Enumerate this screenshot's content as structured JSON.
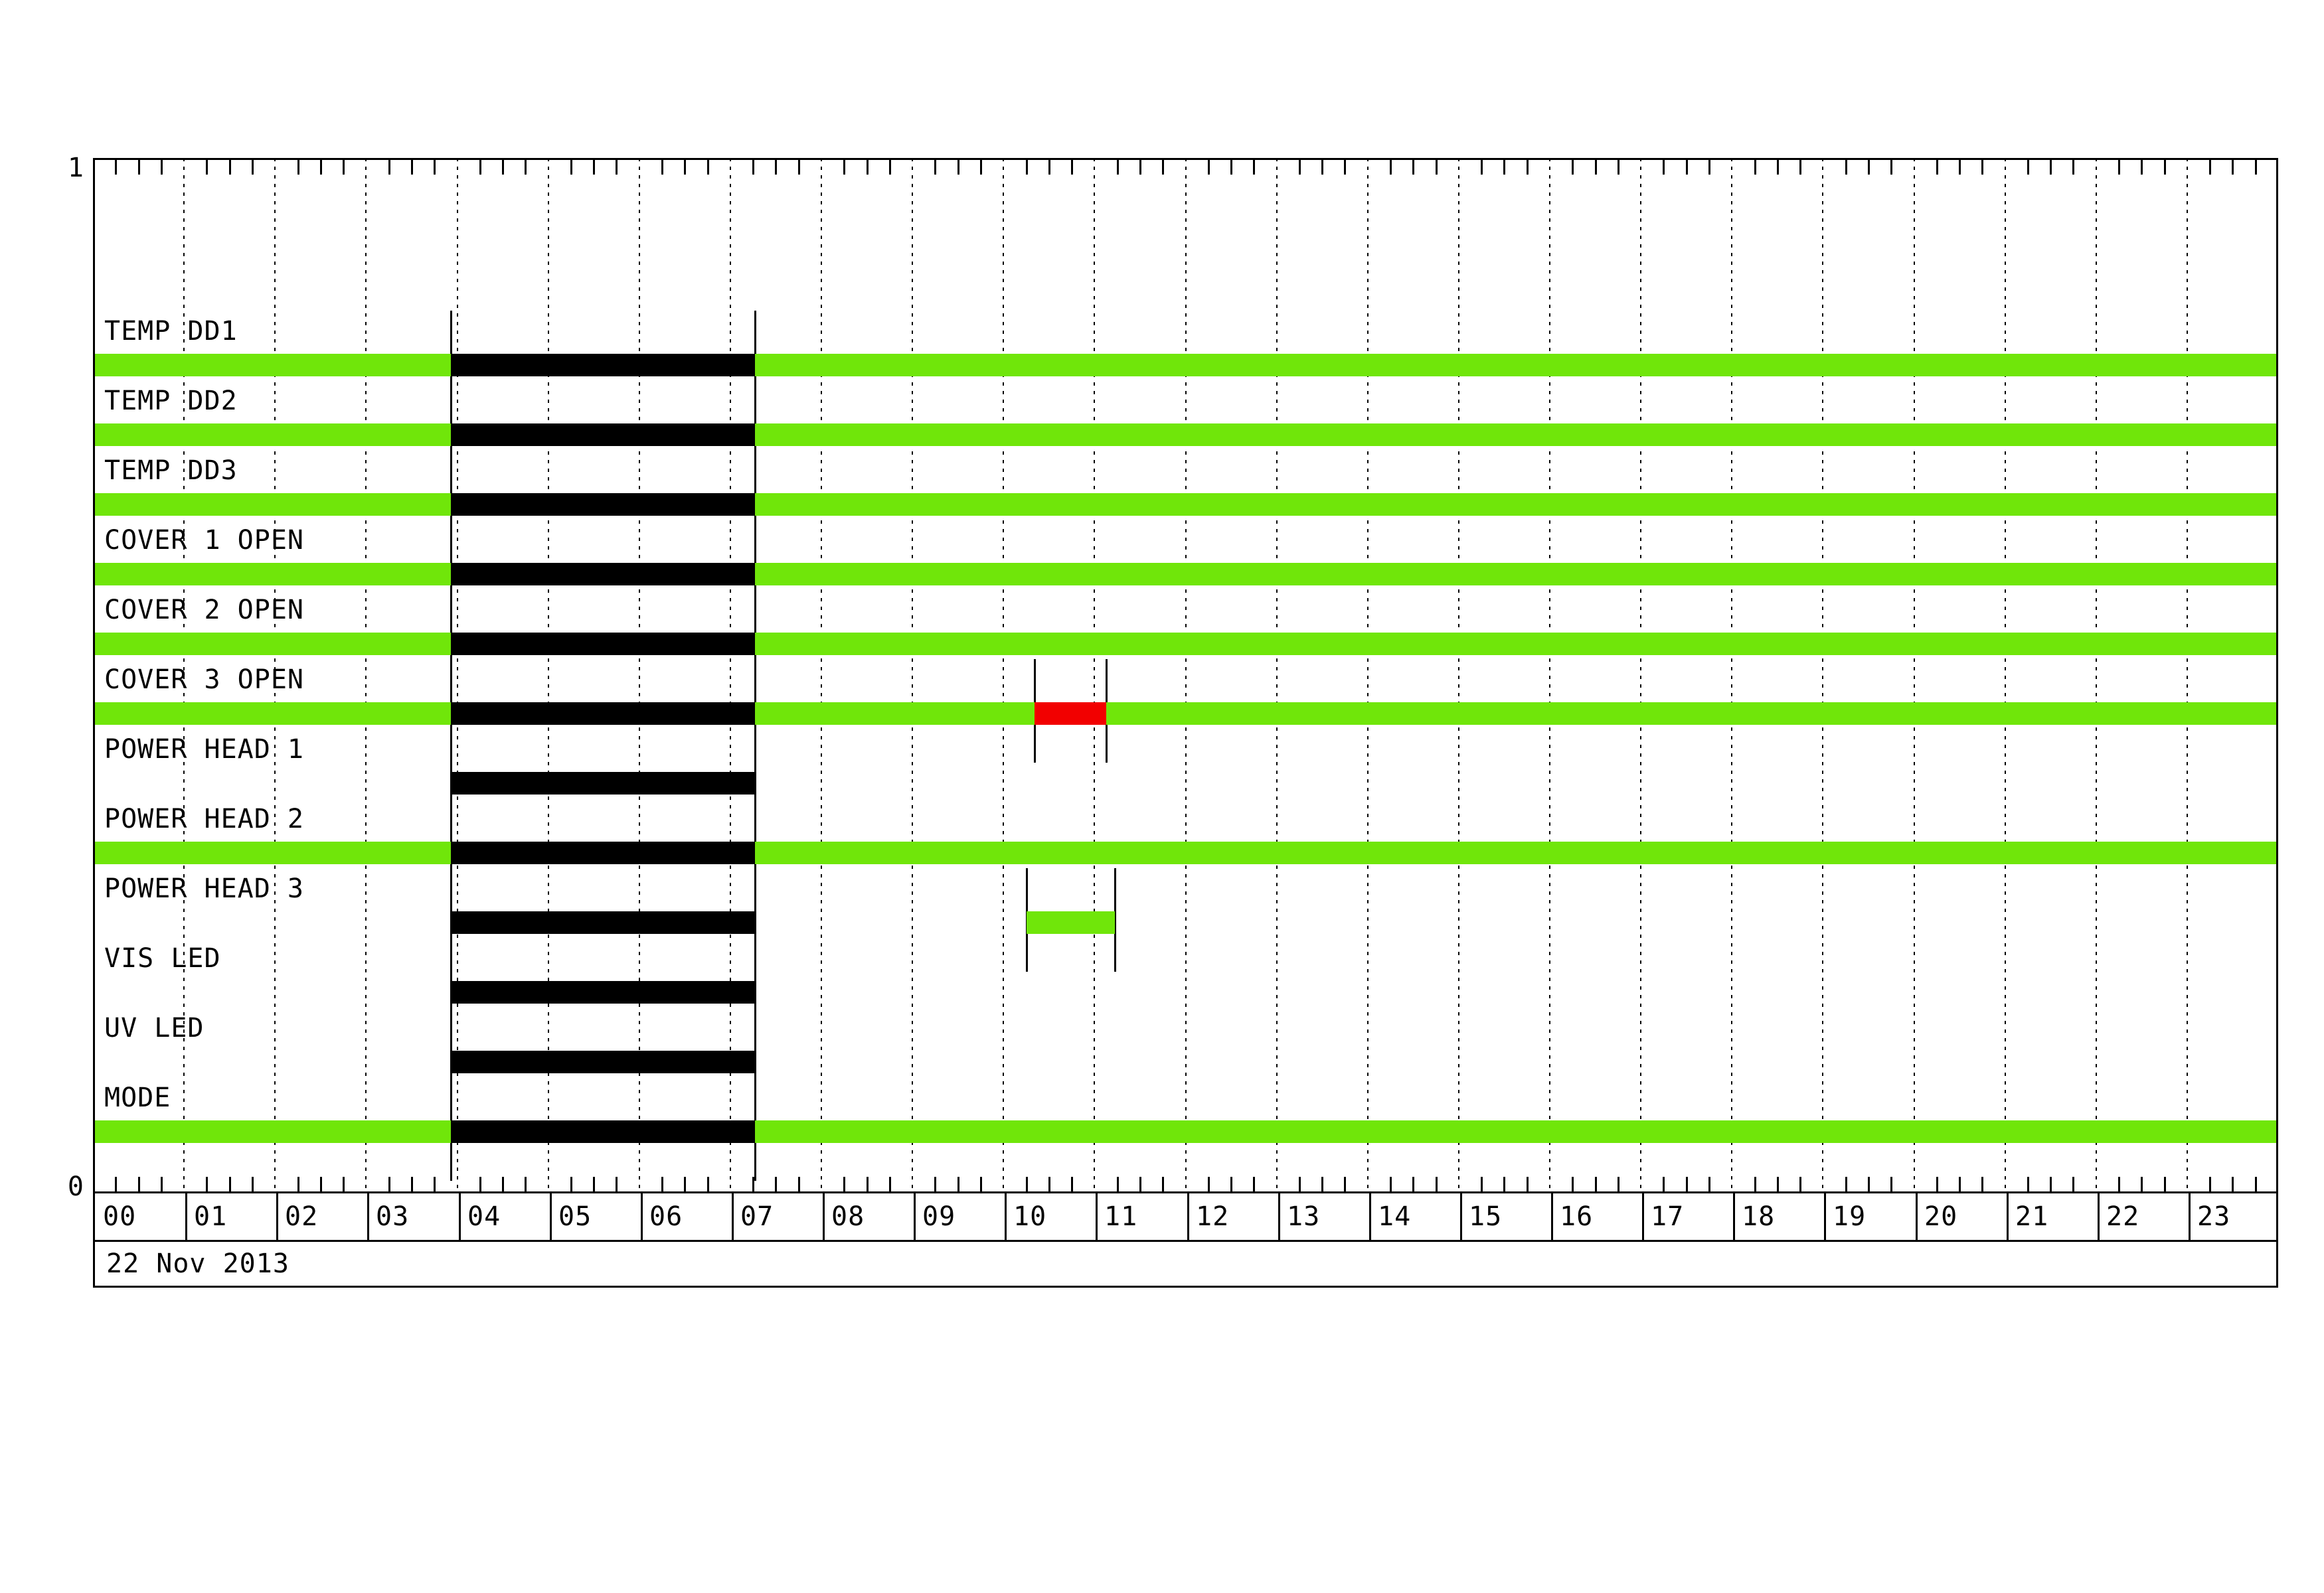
{
  "y_axis": {
    "top_label": "1",
    "bottom_label": "0"
  },
  "date_label": "22 Nov 2013",
  "time_axis": {
    "hours": [
      "00",
      "01",
      "02",
      "03",
      "04",
      "05",
      "06",
      "07",
      "08",
      "09",
      "10",
      "11",
      "12",
      "13",
      "14",
      "15",
      "16",
      "17",
      "18",
      "19",
      "20",
      "21",
      "22",
      "23"
    ],
    "minor_tick_minutes": 15
  },
  "palette": {
    "green": "#70E60A",
    "black": "#000000",
    "red": "#F20000"
  },
  "chart_data": {
    "type": "bar",
    "subtype": "state-timeline",
    "title": "",
    "date": "22 Nov 2013",
    "x_unit": "hour-of-day",
    "xlim": [
      0,
      24
    ],
    "ylim": [
      0,
      1
    ],
    "grid": "hourly-dotted-vertical",
    "legend": "none",
    "rows": [
      {
        "label": "TEMP DD1",
        "segments": [
          {
            "start": 0,
            "end": 3.93,
            "color": "green"
          },
          {
            "start": 3.93,
            "end": 7.27,
            "color": "black"
          },
          {
            "start": 7.27,
            "end": 24,
            "color": "green"
          }
        ]
      },
      {
        "label": "TEMP DD2",
        "segments": [
          {
            "start": 0,
            "end": 3.93,
            "color": "green"
          },
          {
            "start": 3.93,
            "end": 7.27,
            "color": "black"
          },
          {
            "start": 7.27,
            "end": 24,
            "color": "green"
          }
        ]
      },
      {
        "label": "TEMP DD3",
        "segments": [
          {
            "start": 0,
            "end": 3.93,
            "color": "green"
          },
          {
            "start": 3.93,
            "end": 7.27,
            "color": "black"
          },
          {
            "start": 7.27,
            "end": 24,
            "color": "green"
          }
        ]
      },
      {
        "label": "COVER 1 OPEN",
        "segments": [
          {
            "start": 0,
            "end": 3.93,
            "color": "green"
          },
          {
            "start": 3.93,
            "end": 7.27,
            "color": "black"
          },
          {
            "start": 7.27,
            "end": 24,
            "color": "green"
          }
        ]
      },
      {
        "label": "COVER 2 OPEN",
        "segments": [
          {
            "start": 0,
            "end": 3.93,
            "color": "green"
          },
          {
            "start": 3.93,
            "end": 7.27,
            "color": "black"
          },
          {
            "start": 7.27,
            "end": 24,
            "color": "green"
          }
        ]
      },
      {
        "label": "COVER 3 OPEN",
        "segments": [
          {
            "start": 0,
            "end": 3.93,
            "color": "green"
          },
          {
            "start": 3.93,
            "end": 7.27,
            "color": "black"
          },
          {
            "start": 7.27,
            "end": 10.34,
            "color": "green"
          },
          {
            "start": 10.34,
            "end": 11.13,
            "color": "red"
          },
          {
            "start": 11.13,
            "end": 24,
            "color": "green"
          }
        ]
      },
      {
        "label": "POWER HEAD 1",
        "segments": [
          {
            "start": 3.93,
            "end": 7.27,
            "color": "black"
          }
        ]
      },
      {
        "label": "POWER HEAD 2",
        "segments": [
          {
            "start": 0,
            "end": 3.93,
            "color": "green"
          },
          {
            "start": 3.93,
            "end": 7.27,
            "color": "black"
          },
          {
            "start": 7.27,
            "end": 24,
            "color": "green"
          }
        ]
      },
      {
        "label": "POWER HEAD 3",
        "segments": [
          {
            "start": 3.93,
            "end": 7.27,
            "color": "black"
          },
          {
            "start": 10.25,
            "end": 11.22,
            "color": "green"
          }
        ]
      },
      {
        "label": "VIS LED",
        "segments": [
          {
            "start": 3.93,
            "end": 7.27,
            "color": "black"
          }
        ]
      },
      {
        "label": "UV LED",
        "segments": [
          {
            "start": 3.93,
            "end": 7.27,
            "color": "black"
          }
        ]
      },
      {
        "label": "MODE",
        "segments": [
          {
            "start": 0,
            "end": 3.93,
            "color": "green"
          },
          {
            "start": 3.93,
            "end": 7.27,
            "color": "black"
          },
          {
            "start": 7.27,
            "end": 24,
            "color": "green"
          }
        ]
      }
    ],
    "annotations": {
      "black_segment_time": {
        "start": "03:56",
        "end": "07:16"
      },
      "cover_3_red_time": {
        "start": "10:20",
        "end": "11:08"
      },
      "power_head_3_green_time": {
        "start": "10:15",
        "end": "11:13"
      }
    }
  }
}
